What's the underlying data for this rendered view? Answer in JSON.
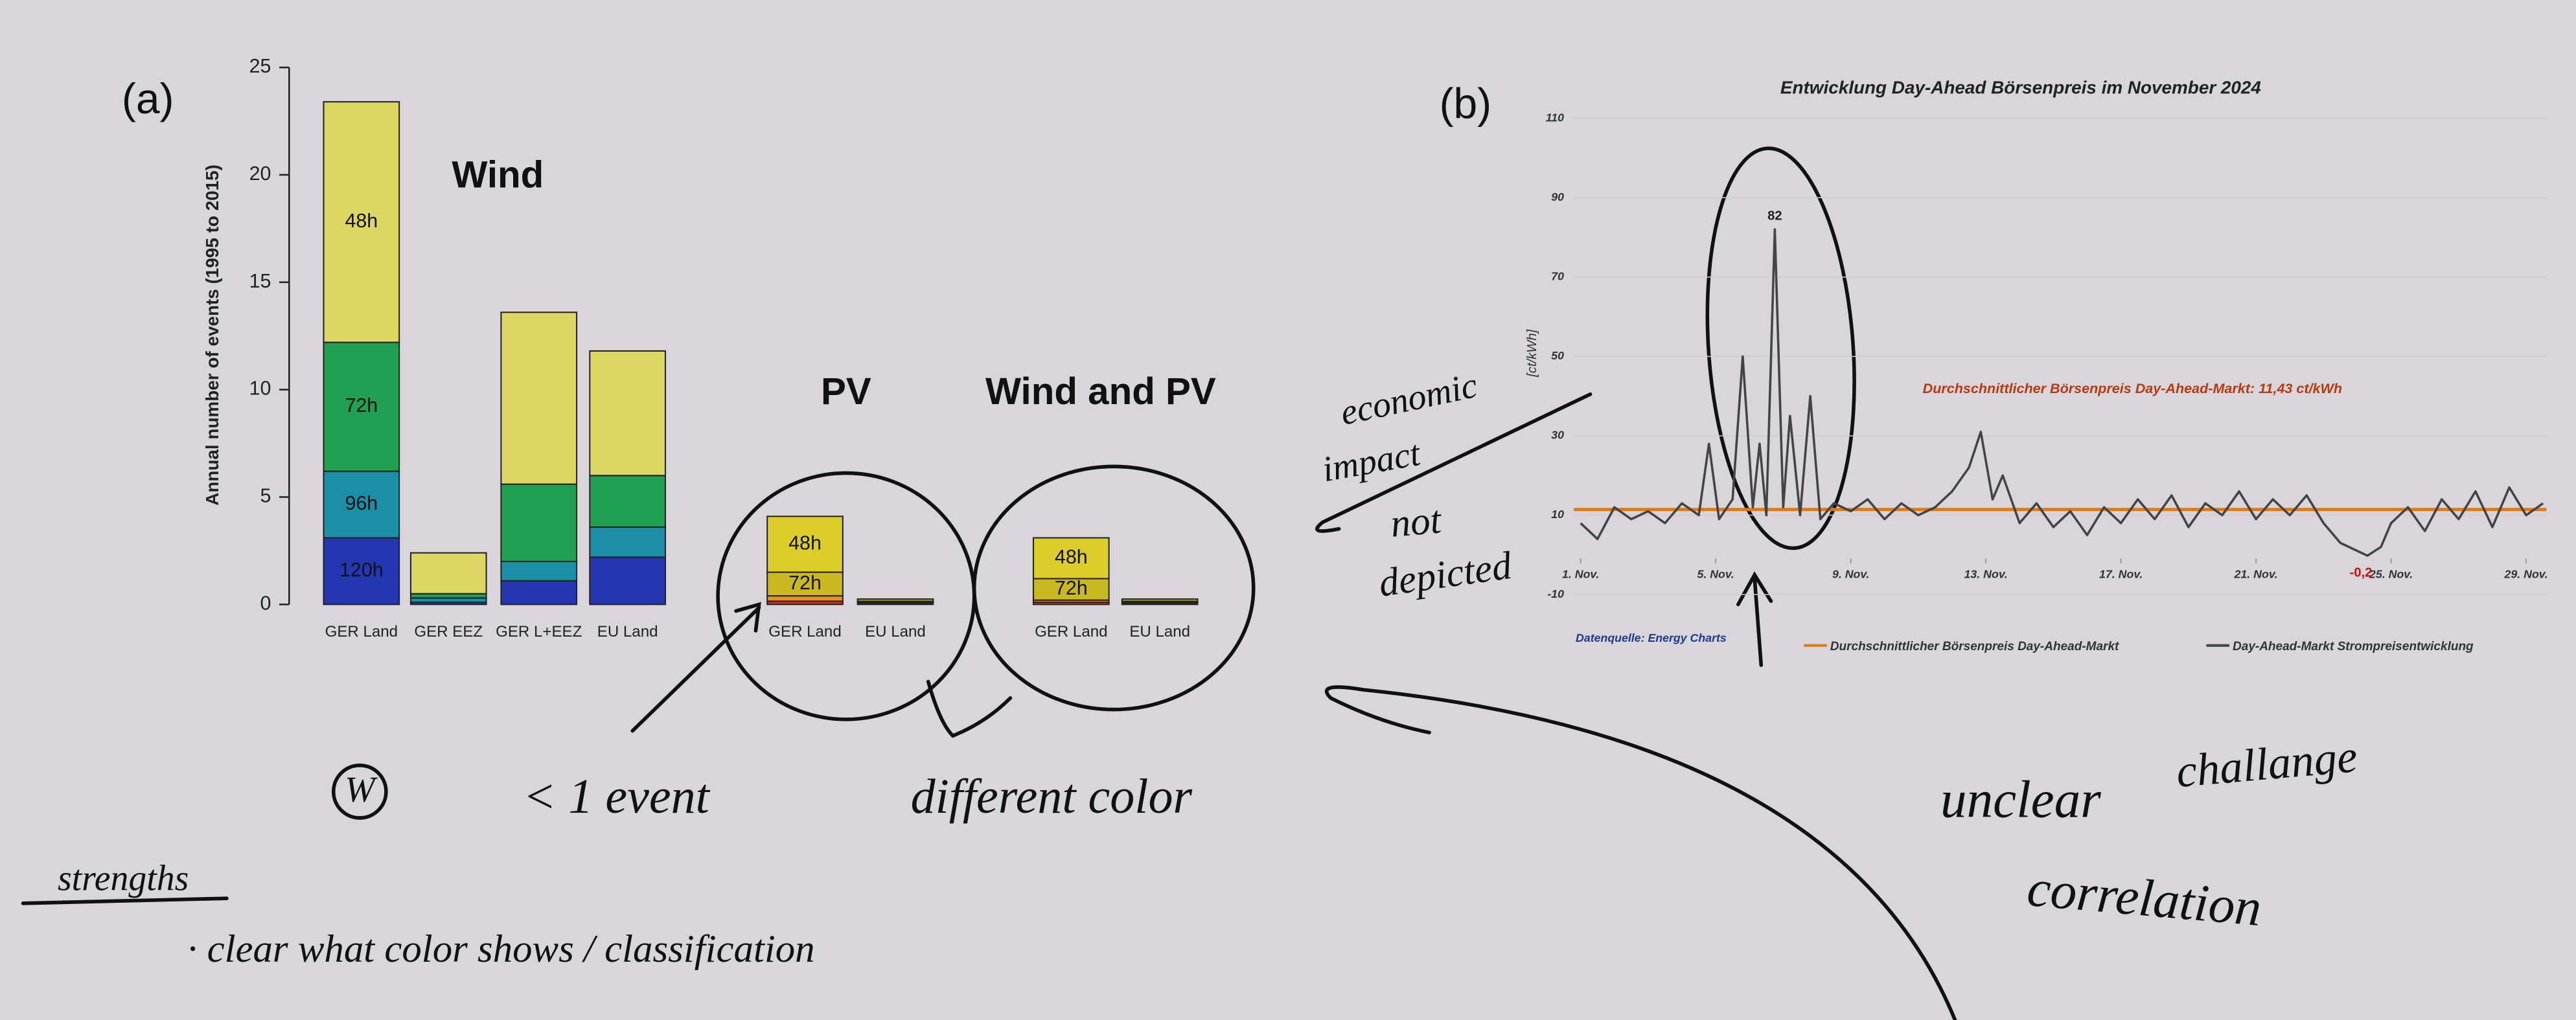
{
  "chart_data": [
    {
      "type": "bar",
      "stacked": true,
      "panel_label": "(a)",
      "title": "Wind",
      "ylabel": "Annual number of events (1995 to 2015)",
      "categories": [
        "GER Land",
        "GER EEZ",
        "GER L+EEZ",
        "EU Land"
      ],
      "series": [
        {
          "name": "120h",
          "color": "#2436b0",
          "values": [
            3.1,
            0.1,
            1.1,
            2.2
          ]
        },
        {
          "name": "96h",
          "color": "#1a8fa5",
          "values": [
            3.1,
            0.2,
            0.9,
            1.4
          ]
        },
        {
          "name": "72h",
          "color": "#22a052",
          "values": [
            6.0,
            0.2,
            3.6,
            2.4
          ]
        },
        {
          "name": "48h",
          "color": "#ddd662",
          "values": [
            11.2,
            1.9,
            8.0,
            5.8
          ]
        }
      ],
      "ylim": [
        0,
        25
      ],
      "yticks": [
        0,
        5,
        10,
        15,
        20,
        25
      ]
    },
    {
      "type": "bar",
      "stacked": true,
      "title": "PV",
      "categories": [
        "GER Land",
        "EU Land"
      ],
      "series": [
        {
          "color": "#d03020",
          "values": [
            0.15,
            0.05
          ]
        },
        {
          "color": "#e89020",
          "values": [
            0.25,
            0.05
          ]
        },
        {
          "name": "72h",
          "color": "#c9b820",
          "values": [
            1.1,
            0.05
          ]
        },
        {
          "name": "48h",
          "color": "#dccd2a",
          "values": [
            2.6,
            0.1
          ]
        }
      ],
      "ylim": [
        0,
        25
      ]
    },
    {
      "type": "bar",
      "stacked": true,
      "title": "Wind and PV",
      "categories": [
        "GER Land",
        "EU Land"
      ],
      "series": [
        {
          "color": "#d03020",
          "values": [
            0.1,
            0.05
          ]
        },
        {
          "color": "#e89020",
          "values": [
            0.1,
            0.05
          ]
        },
        {
          "name": "72h",
          "color": "#c9b820",
          "values": [
            1.0,
            0.05
          ]
        },
        {
          "name": "48h",
          "color": "#dccd2a",
          "values": [
            1.9,
            0.1
          ]
        }
      ],
      "ylim": [
        0,
        25
      ]
    },
    {
      "type": "line",
      "panel_label": "(b)",
      "title": "Entwicklung Day-Ahead Börsenpreis im November 2024",
      "ylabel": "[ct/kWh]",
      "x": [
        1,
        1.5,
        2,
        2.5,
        3,
        3.5,
        4,
        4.5,
        4.8,
        5.1,
        5.5,
        5.8,
        6.1,
        6.3,
        6.5,
        6.75,
        7,
        7.2,
        7.5,
        7.8,
        8.1,
        8.5,
        9,
        9.5,
        10,
        10.5,
        11,
        11.5,
        12,
        12.5,
        12.85,
        13.2,
        13.5,
        14,
        14.5,
        15,
        15.5,
        16,
        16.5,
        17,
        17.5,
        18,
        18.5,
        19,
        19.5,
        20,
        20.5,
        21,
        21.5,
        22,
        22.5,
        23,
        23.5,
        24,
        24.3,
        24.7,
        25,
        25.5,
        26,
        26.5,
        27,
        27.5,
        28,
        28.5,
        29,
        29.5
      ],
      "series": [
        {
          "name": "Day-Ahead-Markt Strompreisentwicklung",
          "color": "#444444",
          "values": [
            8,
            4,
            12,
            9,
            11,
            8,
            13,
            10,
            28,
            9,
            14,
            50,
            12,
            28,
            10,
            82,
            12,
            35,
            10,
            40,
            9,
            13,
            11,
            14,
            9,
            13,
            10,
            12,
            16,
            22,
            31,
            14,
            20,
            8,
            13,
            7,
            11,
            5,
            12,
            8,
            14,
            9,
            15,
            7,
            13,
            10,
            16,
            9,
            14,
            10,
            15,
            8,
            3,
            1,
            -0.2,
            2,
            8,
            12,
            6,
            14,
            9,
            16,
            7,
            17,
            10,
            13
          ],
          "value_labels": [
            null,
            null,
            null,
            null,
            null,
            null,
            null,
            null,
            null,
            null,
            null,
            null,
            null,
            null,
            null,
            "82",
            null,
            null,
            null,
            null,
            null,
            null,
            null,
            null,
            null,
            null,
            null,
            null,
            null,
            null,
            null,
            null,
            null,
            null,
            null,
            null,
            null,
            null,
            null,
            null,
            null,
            null,
            null,
            null,
            null,
            null,
            null,
            null,
            null,
            null,
            null,
            null,
            null,
            null,
            "-0,2",
            null,
            null,
            null,
            null,
            null,
            null,
            null,
            null,
            null,
            null,
            null
          ]
        }
      ],
      "average": {
        "name": "Durchschnittlicher Börsenpreis Day-Ahead-Markt",
        "value": 11.43,
        "color": "#e07a10",
        "label": "Durchschnittlicher Börsenpreis Day-Ahead-Markt: 11,43 ct/kWh"
      },
      "source": "Datenquelle: Energy Charts",
      "xlim": [
        0.8,
        29.6
      ],
      "xticks": [
        {
          "value": 1,
          "label": "1. Nov."
        },
        {
          "value": 5,
          "label": "5. Nov."
        },
        {
          "value": 9,
          "label": "9. Nov."
        },
        {
          "value": 13,
          "label": "13. Nov."
        },
        {
          "value": 17,
          "label": "17. Nov."
        },
        {
          "value": 21,
          "label": "21. Nov."
        },
        {
          "value": 25,
          "label": "25. Nov."
        },
        {
          "value": 29,
          "label": "29. Nov."
        }
      ],
      "ylim": [
        -10,
        110
      ],
      "yticks": [
        -10,
        10,
        30,
        50,
        70,
        90,
        110
      ]
    }
  ],
  "annotations": [
    "economic",
    "impact",
    "not",
    "depicted",
    "W",
    "< 1 event",
    "different color",
    "strengths",
    "· clear what color shows / classification",
    "unclear",
    "challange",
    "correlation"
  ]
}
